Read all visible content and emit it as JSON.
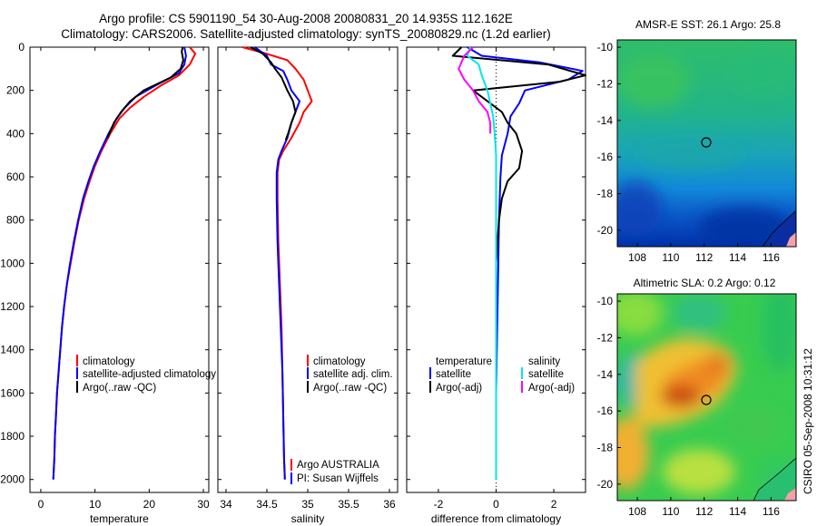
{
  "title": {
    "line1": "Argo profile: CS 5901190_54 30-Aug-2008 20080831_20 14.935S 112.162E",
    "line2": "Climatology: CARS2006. Satellite-adjusted climatology: synTS_20080829.nc (1.2d earlier)"
  },
  "side_stamp": "CSIRO 05-Sep-2008 10:31:12",
  "colors": {
    "red": "#ff0000",
    "blue": "#0000ff",
    "black": "#000000",
    "cyan": "#00e6f0",
    "magenta": "#ff00ff"
  },
  "chart_data": [
    {
      "type": "line",
      "id": "temperature",
      "xlabel": "temperature",
      "ylabel": "",
      "xlim": [
        -2,
        31
      ],
      "ylim": [
        2060,
        0
      ],
      "xticks": [
        "0",
        "10",
        "20",
        "30"
      ],
      "yticks": [
        "0",
        "200",
        "400",
        "600",
        "800",
        "1000",
        "1200",
        "1400",
        "1600",
        "1800",
        "2000"
      ],
      "legend": [
        "climatology",
        "satellite-adjusted climatology",
        "Argo(..raw -QC)"
      ],
      "series": [
        {
          "name": "climatology",
          "color": "#ff0000",
          "points": [
            [
              27.5,
              0
            ],
            [
              28.5,
              30
            ],
            [
              27.5,
              80
            ],
            [
              25.5,
              130
            ],
            [
              22,
              180
            ],
            [
              19,
              230
            ],
            [
              16.5,
              280
            ],
            [
              14.5,
              330
            ],
            [
              12.8,
              400
            ],
            [
              11.2,
              480
            ],
            [
              10,
              550
            ],
            [
              9,
              620
            ],
            [
              8,
              700
            ],
            [
              7,
              800
            ],
            [
              6.2,
              900
            ],
            [
              5.5,
              1000
            ],
            [
              4.8,
              1100
            ],
            [
              4.3,
              1200
            ],
            [
              3.9,
              1300
            ],
            [
              3.6,
              1400
            ],
            [
              3.3,
              1500
            ],
            [
              3,
              1600
            ],
            [
              2.8,
              1700
            ],
            [
              2.6,
              1800
            ],
            [
              2.5,
              1900
            ],
            [
              2.3,
              2000
            ]
          ]
        },
        {
          "name": "satellite-adjusted climatology",
          "color": "#0000ff",
          "points": [
            [
              26.5,
              0
            ],
            [
              26.8,
              40
            ],
            [
              26.5,
              80
            ],
            [
              25.5,
              120
            ],
            [
              21,
              180
            ],
            [
              17.5,
              230
            ],
            [
              15.5,
              280
            ],
            [
              14,
              330
            ],
            [
              12.5,
              400
            ],
            [
              11,
              480
            ],
            [
              9.8,
              550
            ],
            [
              8.8,
              620
            ],
            [
              7.8,
              700
            ],
            [
              6.9,
              800
            ],
            [
              6.1,
              900
            ],
            [
              5.4,
              1000
            ],
            [
              4.8,
              1100
            ],
            [
              4.3,
              1200
            ],
            [
              3.9,
              1300
            ],
            [
              3.6,
              1400
            ],
            [
              3.3,
              1500
            ],
            [
              3,
              1600
            ],
            [
              2.8,
              1700
            ],
            [
              2.6,
              1800
            ],
            [
              2.5,
              1900
            ],
            [
              2.3,
              2000
            ]
          ]
        },
        {
          "name": "Argo(..raw -QC)",
          "color": "#000000",
          "points": [
            [
              26.2,
              0
            ],
            [
              26,
              20
            ],
            [
              26.3,
              60
            ],
            [
              25.8,
              100
            ],
            [
              24,
              140
            ],
            [
              19,
              200
            ],
            [
              16.5,
              250
            ],
            [
              14.8,
              300
            ],
            [
              13.5,
              350
            ],
            [
              12.3,
              420
            ]
          ]
        }
      ]
    },
    {
      "type": "line",
      "id": "salinity",
      "xlabel": "salinity",
      "ylabel": "",
      "xlim": [
        33.9,
        36.1
      ],
      "ylim": [
        2060,
        0
      ],
      "xticks": [
        "34",
        "34.5",
        "35",
        "35.5",
        "36"
      ],
      "legend": [
        "climatology",
        "satellite adj. clim.",
        "Argo(..raw -QC)"
      ],
      "annotations": [
        "Argo AUSTRALIA",
        "PI: Susan Wijffels"
      ],
      "series": [
        {
          "name": "climatology",
          "color": "#ff0000",
          "points": [
            [
              34.2,
              0
            ],
            [
              34.45,
              25
            ],
            [
              34.75,
              60
            ],
            [
              34.85,
              100
            ],
            [
              34.95,
              150
            ],
            [
              35,
              200
            ],
            [
              35.05,
              250
            ],
            [
              34.95,
              300
            ],
            [
              34.9,
              350
            ],
            [
              34.8,
              420
            ],
            [
              34.7,
              480
            ],
            [
              34.65,
              520
            ],
            [
              34.63,
              580
            ],
            [
              34.63,
              700
            ],
            [
              34.64,
              900
            ],
            [
              34.66,
              1100
            ],
            [
              34.68,
              1300
            ],
            [
              34.69,
              1500
            ],
            [
              34.7,
              1700
            ],
            [
              34.71,
              1900
            ],
            [
              34.72,
              2000
            ]
          ]
        },
        {
          "name": "satellite adj. clim.",
          "color": "#0000ff",
          "points": [
            [
              34.35,
              0
            ],
            [
              34.5,
              40
            ],
            [
              34.55,
              80
            ],
            [
              34.7,
              110
            ],
            [
              34.75,
              150
            ],
            [
              34.8,
              200
            ],
            [
              34.9,
              250
            ],
            [
              34.85,
              300
            ],
            [
              34.8,
              350
            ],
            [
              34.75,
              420
            ],
            [
              34.68,
              480
            ],
            [
              34.64,
              520
            ],
            [
              34.62,
              580
            ],
            [
              34.62,
              700
            ],
            [
              34.63,
              900
            ],
            [
              34.65,
              1100
            ],
            [
              34.67,
              1300
            ],
            [
              34.69,
              1500
            ],
            [
              34.7,
              1700
            ],
            [
              34.71,
              1900
            ],
            [
              34.72,
              2000
            ]
          ]
        },
        {
          "name": "Argo(..raw -QC)",
          "color": "#000000",
          "points": [
            [
              34.3,
              0
            ],
            [
              34.45,
              30
            ],
            [
              34.55,
              70
            ],
            [
              34.6,
              100
            ],
            [
              34.68,
              140
            ],
            [
              34.75,
              200
            ],
            [
              34.82,
              250
            ],
            [
              34.85,
              300
            ],
            [
              34.8,
              350
            ],
            [
              34.76,
              400
            ],
            [
              34.73,
              430
            ]
          ]
        }
      ]
    },
    {
      "type": "line",
      "id": "difference",
      "xlabel": "difference from climatology",
      "ylabel": "",
      "xlim": [
        -3.1,
        3.1
      ],
      "ylim": [
        2060,
        0
      ],
      "xticks": [
        "-2",
        "0",
        "2"
      ],
      "legend_temperature_header": "temperature",
      "legend_salinity_header": "salinity",
      "legend": [
        "satellite",
        "Argo(-adj)",
        "satellite",
        "Argo(-adj)"
      ],
      "series": [
        {
          "name": "temperature satellite",
          "color": "#0000ff",
          "points": [
            [
              -1,
              0
            ],
            [
              -0.5,
              40
            ],
            [
              1.5,
              70
            ],
            [
              3,
              110
            ],
            [
              2.5,
              150
            ],
            [
              1,
              200
            ],
            [
              0.8,
              260
            ],
            [
              0.5,
              320
            ],
            [
              0.4,
              400
            ],
            [
              0.2,
              500
            ],
            [
              0.15,
              600
            ],
            [
              0.1,
              800
            ],
            [
              0.05,
              1200
            ],
            [
              0,
              1600
            ],
            [
              0,
              2000
            ]
          ]
        },
        {
          "name": "temperature Argo(-adj)",
          "color": "#000000",
          "points": [
            [
              -1.2,
              0
            ],
            [
              -1.5,
              40
            ],
            [
              1.8,
              80
            ],
            [
              3.1,
              130
            ],
            [
              2.2,
              160
            ],
            [
              -0.8,
              200
            ],
            [
              -0.4,
              240
            ],
            [
              0.2,
              300
            ],
            [
              0.4,
              350
            ],
            [
              0.7,
              400
            ],
            [
              0.9,
              480
            ],
            [
              0.8,
              560
            ],
            [
              0.4,
              620
            ],
            [
              0.2,
              700
            ],
            [
              0.1,
              800
            ],
            [
              0,
              1000
            ],
            [
              0,
              1600
            ],
            [
              0,
              2000
            ]
          ]
        },
        {
          "name": "salinity satellite",
          "color": "#00e6f0",
          "points": [
            [
              -0.9,
              0
            ],
            [
              -1,
              40
            ],
            [
              -0.6,
              80
            ],
            [
              -0.5,
              130
            ],
            [
              -0.3,
              200
            ],
            [
              -0.2,
              260
            ],
            [
              -0.1,
              320
            ],
            [
              -0.05,
              400
            ],
            [
              0,
              500
            ],
            [
              0,
              700
            ],
            [
              0,
              1000
            ],
            [
              0,
              1500
            ],
            [
              0,
              2000
            ]
          ]
        },
        {
          "name": "salinity Argo(-adj)",
          "color": "#ff00ff",
          "points": [
            [
              -0.8,
              0
            ],
            [
              -1.1,
              40
            ],
            [
              -1.3,
              100
            ],
            [
              -1.1,
              150
            ],
            [
              -0.8,
              200
            ],
            [
              -0.6,
              250
            ],
            [
              -0.3,
              300
            ],
            [
              -0.2,
              350
            ],
            [
              -0.2,
              400
            ]
          ]
        }
      ]
    },
    {
      "type": "heatmap",
      "id": "sst_map",
      "title": "AMSR-E SST: 26.1 Argo: 25.8",
      "xlim": [
        106.8,
        117.5
      ],
      "ylim": [
        -20.9,
        -9.6
      ],
      "xticks": [
        "108",
        "110",
        "112",
        "114",
        "116"
      ],
      "yticks": [
        "-10",
        "-12",
        "-14",
        "-16",
        "-18",
        "-20"
      ],
      "marker": [
        112.162,
        -14.935
      ]
    },
    {
      "type": "heatmap",
      "id": "sla_map",
      "title": "Altimetric SLA: 0.2 Argo: 0.12",
      "xlim": [
        106.8,
        117.5
      ],
      "ylim": [
        -20.9,
        -9.6
      ],
      "xticks": [
        "108",
        "110",
        "112",
        "114",
        "116"
      ],
      "yticks": [
        "-10",
        "-12",
        "-14",
        "-16",
        "-18",
        "-20"
      ],
      "marker": [
        112.162,
        -14.935
      ]
    }
  ]
}
